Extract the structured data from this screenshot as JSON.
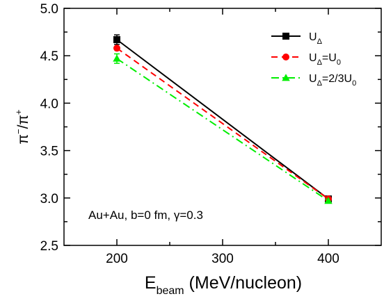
{
  "chart_data": {
    "type": "line",
    "x": [
      200,
      400
    ],
    "xlim": [
      150,
      450
    ],
    "ylim": [
      2.5,
      5.0
    ],
    "xticks": [
      200,
      300,
      400
    ],
    "yticks": [
      2.5,
      3.0,
      3.5,
      4.0,
      4.5,
      5.0
    ],
    "xtick_labels": [
      "200",
      "300",
      "400"
    ],
    "ytick_labels": [
      "2.5",
      "3.0",
      "3.5",
      "4.0",
      "4.5",
      "5.0"
    ],
    "xlabel": {
      "main": "E",
      "sub": "beam",
      "rest": " (MeV/nucleon)"
    },
    "ylabel": {
      "num": "π",
      "num_sup": "−",
      "slash": "/",
      "den": "π",
      "den_sup": "+"
    },
    "annotation": "Au+Au, b=0 fm, γ=0.3",
    "legend_position": "top-right",
    "grid": false,
    "series": [
      {
        "legend": {
          "base": "U",
          "sub": "Δ",
          "rest": "",
          "rest_sub": ""
        },
        "values": [
          4.67,
          2.99
        ],
        "errors": [
          0.05,
          0.0
        ],
        "color": "#000000",
        "line_style": "solid",
        "marker": "square"
      },
      {
        "legend": {
          "base": "U",
          "sub": "Δ",
          "rest": "=U",
          "rest_sub": "0"
        },
        "values": [
          4.58,
          2.99
        ],
        "errors": [
          0.0,
          0.0
        ],
        "color": "#ff0000",
        "line_style": "dash",
        "marker": "circle"
      },
      {
        "legend": {
          "base": "U",
          "sub": "Δ",
          "rest": "=2/3U",
          "rest_sub": "0"
        },
        "values": [
          4.47,
          2.97
        ],
        "errors": [
          0.05,
          0.0
        ],
        "color": "#00ee00",
        "line_style": "dashdot",
        "marker": "triangle"
      }
    ]
  }
}
